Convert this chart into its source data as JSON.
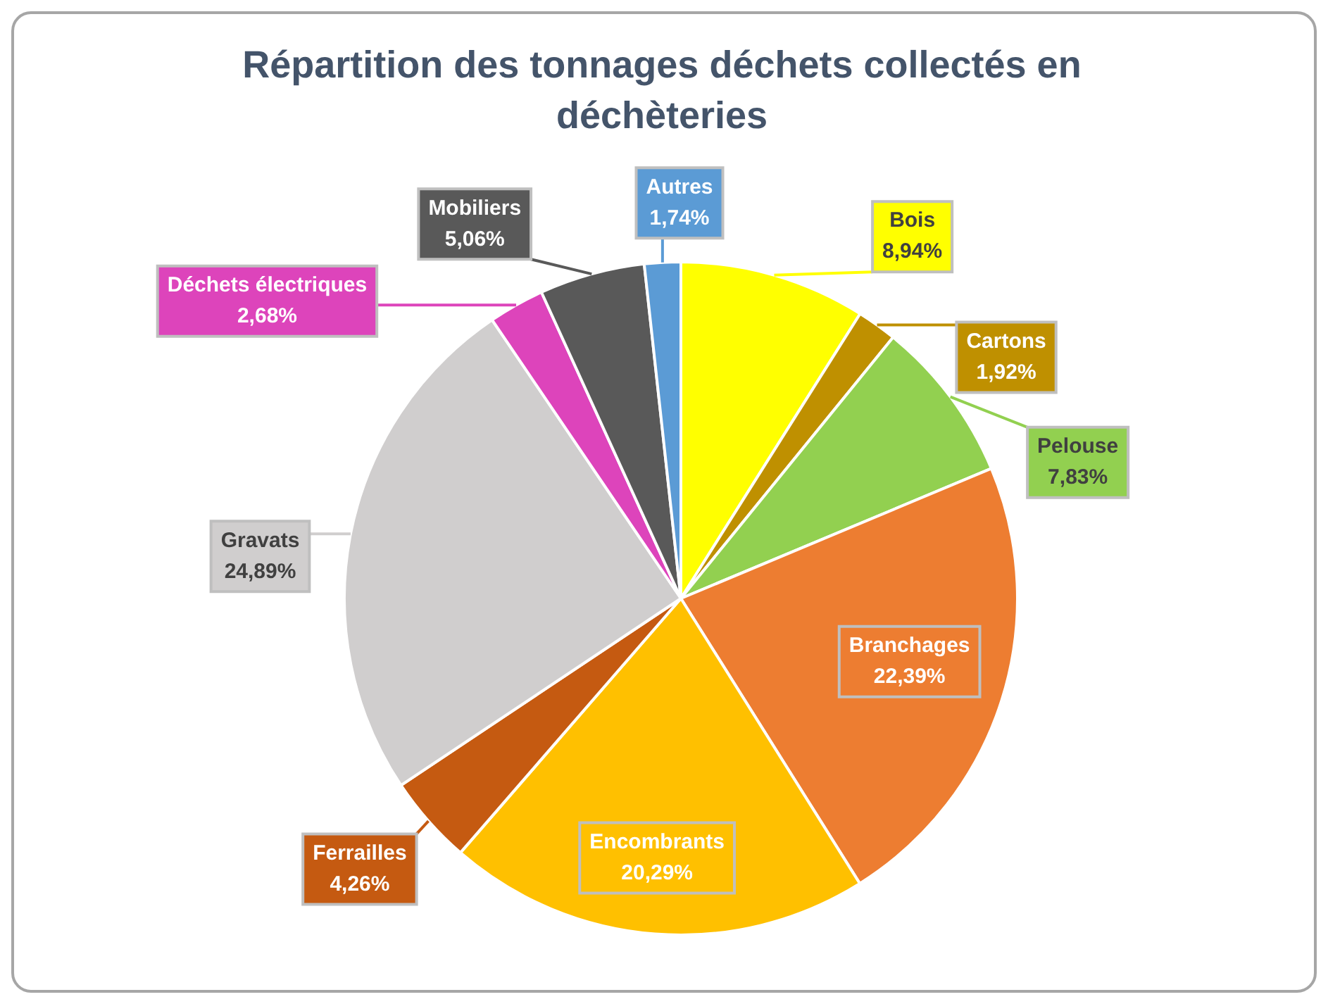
{
  "chart_data": {
    "type": "pie",
    "title": "Répartition des tonnages déchets collectés en déchèteries",
    "categories": [
      "Bois",
      "Cartons",
      "Pelouse",
      "Branchages",
      "Encombrants",
      "Ferrailles",
      "Gravats",
      "Déchets électriques",
      "Mobiliers",
      "Autres"
    ],
    "values": [
      8.94,
      1.92,
      7.83,
      22.39,
      20.29,
      4.26,
      24.89,
      2.68,
      5.06,
      1.74
    ],
    "colors": [
      "#ffff00",
      "#bf9000",
      "#92d050",
      "#ed7d31",
      "#ffc000",
      "#c55a11",
      "#d0cece",
      "#dd44bb",
      "#595959",
      "#5b9bd5"
    ],
    "value_labels": [
      "8,94%",
      "1,92%",
      "7,83%",
      "22,39%",
      "20,29%",
      "4,26%",
      "24,89%",
      "2,68%",
      "5,06%",
      "1,74%"
    ],
    "legend": false
  }
}
